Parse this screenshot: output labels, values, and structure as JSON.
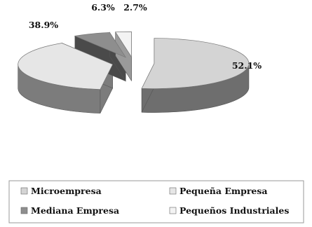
{
  "chart_data": {
    "type": "pie",
    "style": "3d-exploded",
    "categories": [
      "Microempresa",
      "Pequeña Empresa",
      "Mediana Empresa",
      "Pequeños Industriales"
    ],
    "values": [
      52.1,
      38.9,
      6.3,
      2.7
    ],
    "value_labels": [
      "52.1%",
      "38.9%",
      "6.3%",
      "2.7%"
    ],
    "colors": [
      "#d4d4d4",
      "#e6e6e6",
      "#8e8e8e",
      "#f3f3f3"
    ],
    "side_colors": [
      "#6e6e6e",
      "#7c7c7c",
      "#4a4a4a",
      "#9a9a9a"
    ],
    "legend_position": "bottom",
    "title": "",
    "legend": [
      {
        "label": "Microempresa",
        "color": "#d4d4d4"
      },
      {
        "label": "Pequeña Empresa",
        "color": "#e6e6e6"
      },
      {
        "label": "Mediana Empresa",
        "color": "#8e8e8e"
      },
      {
        "label": "Pequeños Industriales",
        "color": "#f3f3f3"
      }
    ]
  }
}
